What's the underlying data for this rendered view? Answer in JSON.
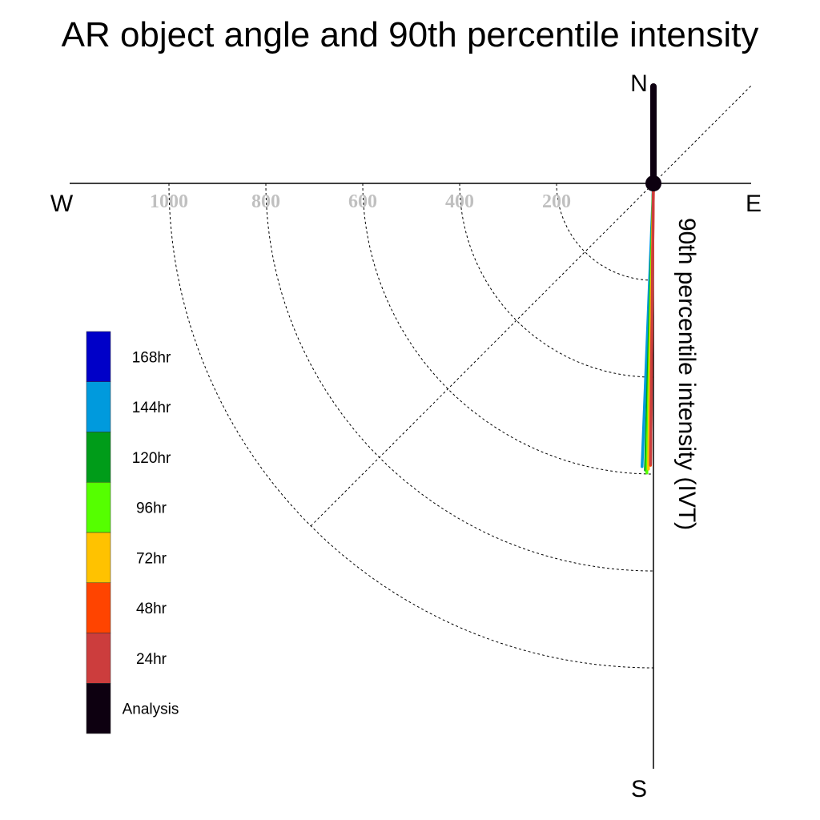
{
  "chart_data": {
    "type": "polar-line",
    "title": "AR object angle and 90th percentile intensity",
    "ylabel": "90th percentile intensity (IVT)",
    "compass": {
      "north": "N",
      "south": "S",
      "east": "E",
      "west": "W"
    },
    "rlim": [
      0,
      1000
    ],
    "r_ticks": [
      200,
      400,
      600,
      800,
      1000
    ],
    "r_tick_labels": [
      "200",
      "400",
      "600",
      "800",
      "1000"
    ],
    "grid": true,
    "legend_position": "left",
    "series": [
      {
        "name": "Analysis",
        "color": "#0d0010",
        "angle_deg": 90.0,
        "intensity": 200
      },
      {
        "name": "24hr",
        "color": "#cc3d3d",
        "angle_deg": 90.6,
        "intensity": 580
      },
      {
        "name": "48hr",
        "color": "#ff4400",
        "angle_deg": 90.6,
        "intensity": 582
      },
      {
        "name": "72hr",
        "color": "#ffc200",
        "angle_deg": 91.0,
        "intensity": 590
      },
      {
        "name": "96hr",
        "color": "#55ff00",
        "angle_deg": 91.3,
        "intensity": 598
      },
      {
        "name": "120hr",
        "color": "#009c19",
        "angle_deg": 91.6,
        "intensity": 592
      },
      {
        "name": "144hr",
        "color": "#009add",
        "angle_deg": 92.3,
        "intensity": 585
      },
      {
        "name": "168hr",
        "color": "#0000c8",
        "angle_deg": 91.4,
        "intensity": 578
      }
    ],
    "legend_order": [
      "168hr",
      "144hr",
      "120hr",
      "96hr",
      "72hr",
      "48hr",
      "24hr",
      "Analysis"
    ]
  }
}
